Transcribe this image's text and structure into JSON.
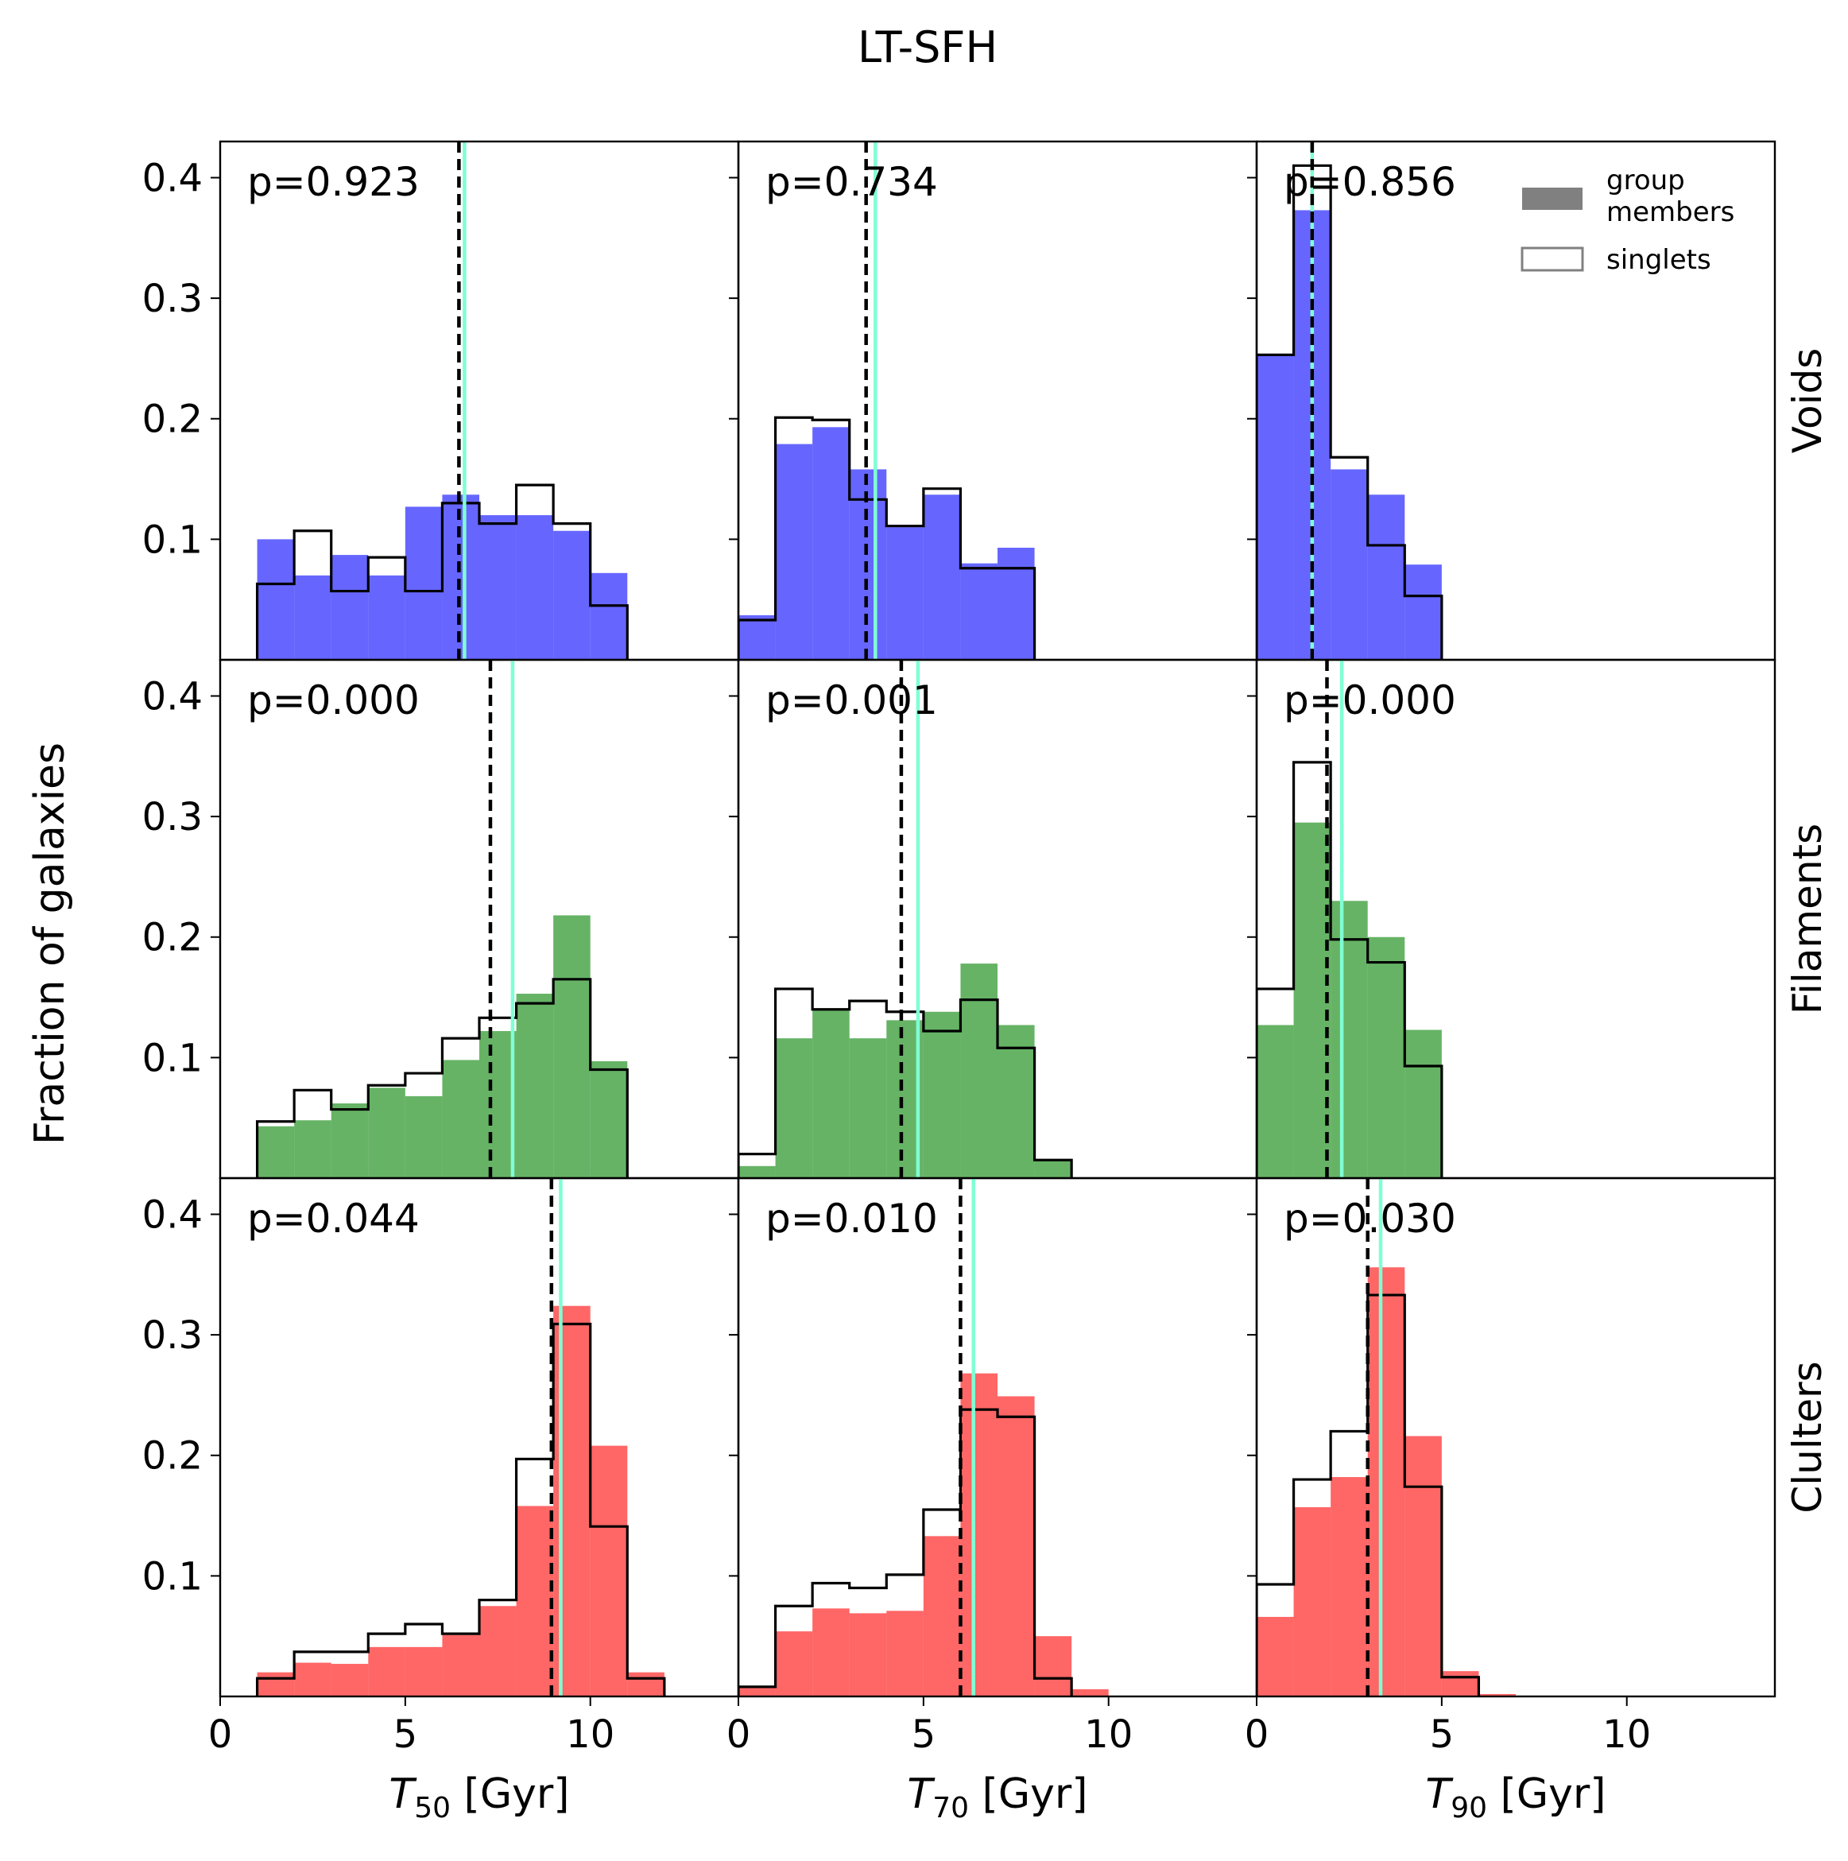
{
  "chart_data": {
    "type": "histogram-grid",
    "title": "LT-SFH",
    "ylabel": "Fraction of galaxies",
    "xlim": [
      0,
      14
    ],
    "ylim": [
      0,
      0.43
    ],
    "xticks": [
      0,
      5,
      10
    ],
    "yticks": [
      0.1,
      0.2,
      0.3,
      0.4
    ],
    "bin_width": 1,
    "colors": {
      "fill_alpha": 0.6,
      "median_line": "#7fffd4"
    },
    "legend": {
      "position": "top-right",
      "filled_label": "group\nmembers",
      "step_label": "singlets"
    },
    "rows": [
      {
        "label": "Voids",
        "color": "#0000ff"
      },
      {
        "label": "Filaments",
        "color": "#008000"
      },
      {
        "label": "Clulters",
        "color": "#ff0000"
      }
    ],
    "columns": [
      {
        "xlabel_base": "T",
        "xlabel_sub": "50",
        "xlabel_unit": " [Gyr]"
      },
      {
        "xlabel_base": "T",
        "xlabel_sub": "70",
        "xlabel_unit": " [Gyr]"
      },
      {
        "xlabel_base": "T",
        "xlabel_sub": "90",
        "xlabel_unit": " [Gyr]"
      }
    ],
    "panels": [
      {
        "row": 0,
        "col": 0,
        "p_text": "p=0.923",
        "bin_start": 1,
        "group": [
          0.1,
          0.07,
          0.087,
          0.07,
          0.127,
          0.137,
          0.12,
          0.12,
          0.107,
          0.072
        ],
        "singlets": [
          0.063,
          0.107,
          0.057,
          0.085,
          0.057,
          0.13,
          0.113,
          0.145,
          0.113,
          0.045
        ],
        "singlet_median": 6.45,
        "group_median": 6.6
      },
      {
        "row": 0,
        "col": 1,
        "p_text": "p=0.734",
        "bin_start": 0,
        "group": [
          0.037,
          0.179,
          0.193,
          0.158,
          0.11,
          0.137,
          0.08,
          0.093
        ],
        "singlets": [
          0.033,
          0.201,
          0.199,
          0.133,
          0.111,
          0.142,
          0.076,
          0.076
        ],
        "singlet_median": 3.45,
        "group_median": 3.7
      },
      {
        "row": 0,
        "col": 2,
        "p_text": "p=0.856",
        "bin_start": 0,
        "group": [
          0.253,
          0.373,
          0.158,
          0.137,
          0.079
        ],
        "singlets": [
          0.253,
          0.41,
          0.168,
          0.095,
          0.053
        ],
        "singlet_median": 1.5,
        "group_median": 1.5
      },
      {
        "row": 1,
        "col": 0,
        "p_text": "p=0.000",
        "bin_start": 1,
        "group": [
          0.043,
          0.048,
          0.062,
          0.075,
          0.068,
          0.098,
          0.122,
          0.153,
          0.218,
          0.097
        ],
        "singlets": [
          0.047,
          0.073,
          0.057,
          0.077,
          0.087,
          0.116,
          0.133,
          0.145,
          0.165,
          0.09
        ],
        "singlet_median": 7.3,
        "group_median": 7.9
      },
      {
        "row": 1,
        "col": 1,
        "p_text": "p=0.001",
        "bin_start": 0,
        "group": [
          0.01,
          0.116,
          0.14,
          0.116,
          0.131,
          0.138,
          0.178,
          0.127,
          0.015
        ],
        "singlets": [
          0.02,
          0.157,
          0.14,
          0.147,
          0.138,
          0.122,
          0.148,
          0.108,
          0.015
        ],
        "singlet_median": 4.4,
        "group_median": 4.85
      },
      {
        "row": 1,
        "col": 2,
        "p_text": "p=0.000",
        "bin_start": 0,
        "group": [
          0.127,
          0.295,
          0.23,
          0.2,
          0.123
        ],
        "singlets": [
          0.157,
          0.345,
          0.198,
          0.179,
          0.093
        ],
        "singlet_median": 1.9,
        "group_median": 2.3
      },
      {
        "row": 2,
        "col": 0,
        "p_text": "p=0.044",
        "bin_start": 1,
        "group": [
          0.02,
          0.028,
          0.027,
          0.041,
          0.041,
          0.051,
          0.075,
          0.158,
          0.324,
          0.208,
          0.02
        ],
        "singlets": [
          0.015,
          0.037,
          0.037,
          0.052,
          0.06,
          0.052,
          0.08,
          0.197,
          0.309,
          0.141,
          0.015
        ],
        "singlet_median": 8.95,
        "group_median": 9.2
      },
      {
        "row": 2,
        "col": 1,
        "p_text": "p=0.010",
        "bin_start": 0,
        "group": [
          0.008,
          0.054,
          0.073,
          0.069,
          0.071,
          0.133,
          0.268,
          0.249,
          0.05,
          0.006
        ],
        "singlets": [
          0.008,
          0.075,
          0.094,
          0.09,
          0.101,
          0.155,
          0.238,
          0.232,
          0.015
        ],
        "singlet_median": 6.0,
        "group_median": 6.35
      },
      {
        "row": 2,
        "col": 2,
        "p_text": "p=0.030",
        "bin_start": 0,
        "group": [
          0.066,
          0.157,
          0.182,
          0.356,
          0.216,
          0.021,
          0.002
        ],
        "singlets": [
          0.093,
          0.18,
          0.22,
          0.333,
          0.174,
          0.016
        ],
        "singlet_median": 3.0,
        "group_median": 3.35
      }
    ]
  }
}
